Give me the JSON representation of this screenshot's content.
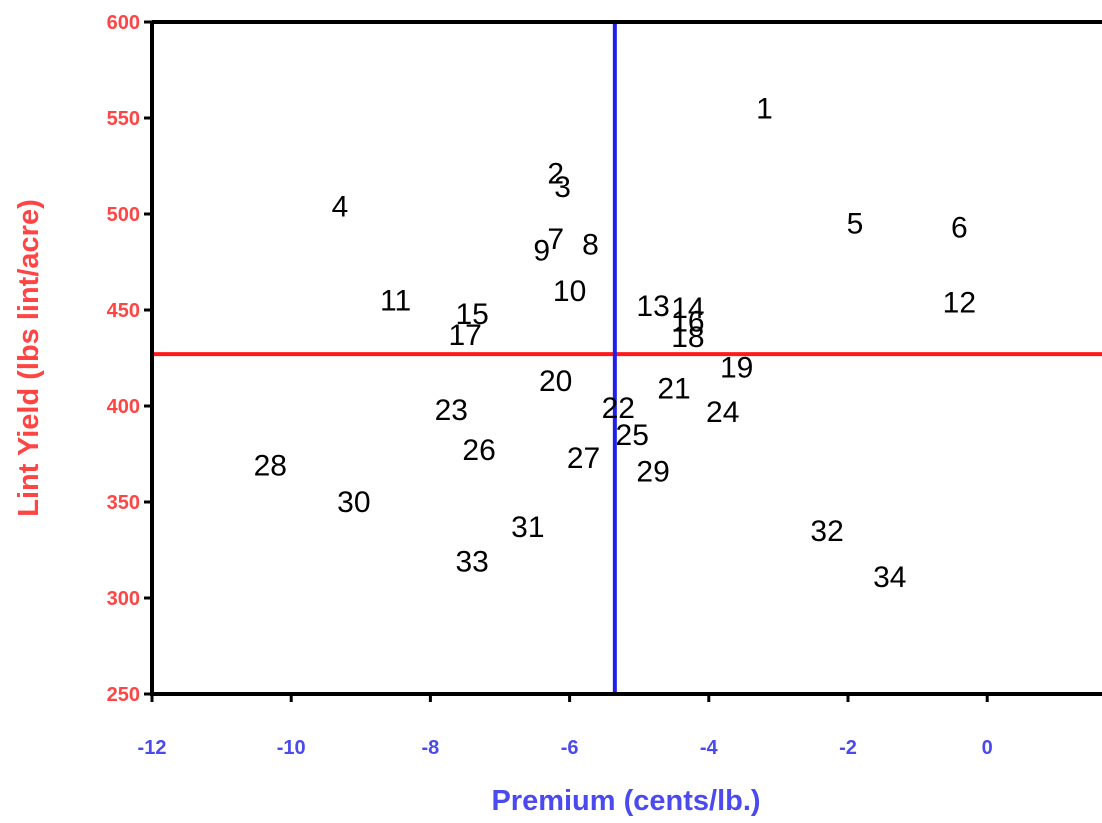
{
  "chart_data": {
    "type": "scatter",
    "title": "",
    "xlabel": "Premium (cents/lb.)",
    "ylabel": "Lint Yield (lbs lint/acre)",
    "xlim": [
      -12,
      1.65
    ],
    "ylim": [
      250,
      600
    ],
    "xticks": [
      -12,
      -10,
      -8,
      -6,
      -4,
      -2,
      0
    ],
    "yticks": [
      250,
      300,
      350,
      400,
      450,
      500,
      550,
      600
    ],
    "grid": false,
    "point_marker": "number labels",
    "points": [
      {
        "label": "1",
        "x": -3.2,
        "y": 555
      },
      {
        "label": "2",
        "x": -6.2,
        "y": 521
      },
      {
        "label": "3",
        "x": -6.1,
        "y": 514
      },
      {
        "label": "4",
        "x": -9.3,
        "y": 504
      },
      {
        "label": "5",
        "x": -1.9,
        "y": 495
      },
      {
        "label": "6",
        "x": -0.4,
        "y": 493
      },
      {
        "label": "7",
        "x": -6.2,
        "y": 487
      },
      {
        "label": "8",
        "x": -5.7,
        "y": 484
      },
      {
        "label": "9",
        "x": -6.4,
        "y": 481
      },
      {
        "label": "10",
        "x": -6.0,
        "y": 460
      },
      {
        "label": "11",
        "x": -8.5,
        "y": 455
      },
      {
        "label": "12",
        "x": -0.4,
        "y": 454
      },
      {
        "label": "13",
        "x": -4.8,
        "y": 452
      },
      {
        "label": "14",
        "x": -4.3,
        "y": 451
      },
      {
        "label": "15",
        "x": -7.4,
        "y": 448
      },
      {
        "label": "16",
        "x": -4.3,
        "y": 444
      },
      {
        "label": "17",
        "x": -7.5,
        "y": 437
      },
      {
        "label": "18",
        "x": -4.3,
        "y": 436
      },
      {
        "label": "19",
        "x": -3.6,
        "y": 420
      },
      {
        "label": "20",
        "x": -6.2,
        "y": 413
      },
      {
        "label": "21",
        "x": -4.5,
        "y": 409
      },
      {
        "label": "22",
        "x": -5.3,
        "y": 399
      },
      {
        "label": "23",
        "x": -7.7,
        "y": 398
      },
      {
        "label": "24",
        "x": -3.8,
        "y": 397
      },
      {
        "label": "25",
        "x": -5.1,
        "y": 385
      },
      {
        "label": "26",
        "x": -7.3,
        "y": 377
      },
      {
        "label": "27",
        "x": -5.8,
        "y": 373
      },
      {
        "label": "28",
        "x": -10.3,
        "y": 369
      },
      {
        "label": "29",
        "x": -4.8,
        "y": 366
      },
      {
        "label": "30",
        "x": -9.1,
        "y": 350
      },
      {
        "label": "31",
        "x": -6.6,
        "y": 337
      },
      {
        "label": "32",
        "x": -2.3,
        "y": 335
      },
      {
        "label": "33",
        "x": -7.4,
        "y": 319
      },
      {
        "label": "34",
        "x": -1.4,
        "y": 311
      }
    ],
    "reference_lines": {
      "vertical_x": -5.35,
      "vertical_color": "#2020e8",
      "horizontal_y": 427,
      "horizontal_color": "#ff1a1a"
    },
    "colors": {
      "y_axis_text": "#ff4444",
      "x_axis_text": "#4a4aee",
      "frame": "#000000",
      "point_labels": "#000000"
    }
  }
}
